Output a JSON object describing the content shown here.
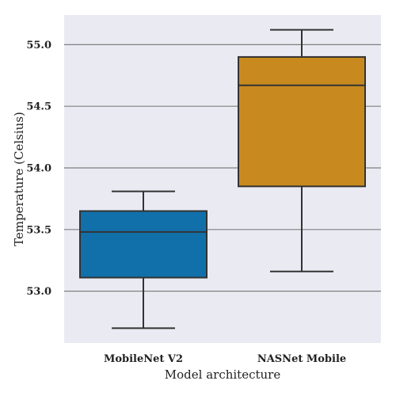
{
  "chart_data": {
    "type": "box",
    "title": "",
    "xlabel": "Model architecture",
    "ylabel": "Temperature (Celsius)",
    "ylim": [
      52.58,
      55.24
    ],
    "yticks": [
      53.0,
      53.5,
      54.0,
      54.5,
      55.0
    ],
    "ytick_labels": [
      "53.0",
      "53.5",
      "54.0",
      "54.5",
      "55.0"
    ],
    "grid": "horizontal",
    "categories": [
      "MobileNet V2",
      "NASNet Mobile"
    ],
    "boxes": [
      {
        "category": "MobileNet V2",
        "whisker_low": 52.7,
        "q1": 53.11,
        "median": 53.48,
        "q3": 53.65,
        "whisker_high": 53.81,
        "color": "#1170aa"
      },
      {
        "category": "NASNet Mobile",
        "whisker_low": 53.16,
        "q1": 53.85,
        "median": 54.67,
        "q3": 54.9,
        "whisker_high": 55.12,
        "color": "#c88a1f"
      }
    ],
    "plot_background": "#eaeaf2",
    "grid_color": "#808080",
    "line_color": "#333333"
  }
}
